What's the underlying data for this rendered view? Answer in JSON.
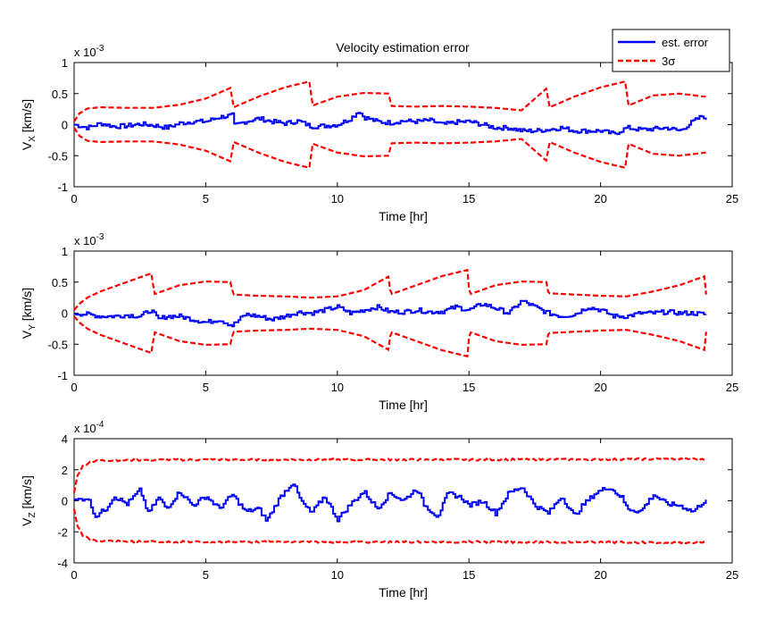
{
  "figure": {
    "title": "Velocity estimation error",
    "legend": {
      "placement": "top-right",
      "entries": [
        {
          "label": "est. error",
          "color": "#0000ff",
          "style": "solid"
        },
        {
          "label": "3σ",
          "color": "#ff0000",
          "style": "dashed"
        }
      ]
    }
  },
  "chart_data": [
    {
      "type": "line",
      "title": "Velocity estimation error",
      "xlabel": "Time [hr]",
      "ylabel_main": "V",
      "ylabel_sub": "X",
      "ylabel_unit": " [km/s]",
      "exponent_base": "x 10",
      "exponent_power": "-3",
      "xlim": [
        0,
        25
      ],
      "ylim": [
        -1,
        1
      ],
      "xticks": [
        "0",
        "5",
        "10",
        "15",
        "20",
        "25"
      ],
      "yticks": [
        "-1",
        "-0.5",
        "0",
        "0.5",
        "1"
      ],
      "grid": false,
      "sigma_envelope": {
        "name": "3σ",
        "color": "#ff0000",
        "resets": [
          6,
          9,
          12,
          18,
          21
        ],
        "x": [
          0,
          0.2,
          0.5,
          1,
          2,
          3,
          4,
          5,
          5.99,
          6.01,
          7,
          8,
          8.99,
          9.01,
          10,
          11,
          11.99,
          12.01,
          13,
          14,
          15,
          16,
          17,
          17.99,
          18.01,
          19,
          20,
          20.99,
          21.01,
          22,
          23,
          24
        ],
        "upper": [
          0.05,
          0.18,
          0.26,
          0.28,
          0.27,
          0.27,
          0.32,
          0.42,
          0.6,
          0.27,
          0.45,
          0.6,
          0.7,
          0.3,
          0.45,
          0.51,
          0.5,
          0.3,
          0.29,
          0.3,
          0.29,
          0.27,
          0.23,
          0.6,
          0.27,
          0.45,
          0.6,
          0.7,
          0.3,
          0.47,
          0.5,
          0.45
        ]
      },
      "series": [
        {
          "name": "est. error",
          "color": "#0000ff",
          "x": [
            0,
            0.5,
            1,
            1.5,
            2,
            2.5,
            3,
            3.5,
            4,
            4.5,
            5,
            5.5,
            6,
            6.05,
            6.5,
            7,
            7.5,
            8,
            8.5,
            9,
            9.5,
            10,
            10.5,
            10.8,
            11,
            11.5,
            12,
            12.5,
            13,
            13.5,
            14,
            14.5,
            15,
            15.5,
            16,
            16.5,
            17,
            17.5,
            18,
            18.5,
            19,
            19.5,
            20,
            20.5,
            21,
            21.5,
            22,
            22.5,
            23,
            23.5,
            23.9,
            24
          ],
          "values": [
            0,
            -0.05,
            0.02,
            -0.03,
            -0.02,
            0.01,
            -0.01,
            -0.05,
            0.02,
            0.05,
            0.05,
            0.12,
            0.15,
            -0.02,
            0.05,
            0.1,
            0.05,
            0.02,
            0.06,
            -0.03,
            -0.02,
            0.0,
            0.1,
            0.22,
            0.12,
            0.05,
            0.03,
            0.06,
            0.05,
            0.07,
            0.0,
            0.04,
            0.05,
            0.0,
            -0.05,
            -0.05,
            -0.1,
            -0.1,
            -0.08,
            -0.05,
            -0.1,
            -0.1,
            -0.1,
            -0.15,
            -0.05,
            -0.08,
            -0.07,
            -0.05,
            -0.1,
            0.05,
            0.15,
            0.05
          ]
        }
      ]
    },
    {
      "type": "line",
      "xlabel": "Time [hr]",
      "ylabel_main": "V",
      "ylabel_sub": "Y",
      "ylabel_unit": " [km/s]",
      "exponent_base": "x 10",
      "exponent_power": "-3",
      "xlim": [
        0,
        25
      ],
      "ylim": [
        -1,
        1
      ],
      "xticks": [
        "0",
        "5",
        "10",
        "15",
        "20",
        "25"
      ],
      "yticks": [
        "-1",
        "-0.5",
        "0",
        "0.5",
        "1"
      ],
      "grid": false,
      "sigma_envelope": {
        "name": "3σ",
        "color": "#ff0000",
        "resets": [
          3,
          6,
          12,
          15,
          18,
          24
        ],
        "x": [
          0,
          0.2,
          0.5,
          1,
          2,
          2.99,
          3.01,
          4,
          5,
          5.99,
          6.01,
          7,
          8,
          9,
          10,
          11,
          11.99,
          12.01,
          13,
          14,
          14.99,
          15.01,
          16,
          17,
          17.99,
          18.01,
          19,
          20,
          21,
          22,
          23,
          23.99,
          24.01
        ],
        "upper": [
          0.05,
          0.15,
          0.25,
          0.35,
          0.5,
          0.65,
          0.3,
          0.45,
          0.51,
          0.5,
          0.3,
          0.28,
          0.27,
          0.25,
          0.27,
          0.37,
          0.6,
          0.3,
          0.45,
          0.6,
          0.7,
          0.3,
          0.45,
          0.51,
          0.5,
          0.32,
          0.3,
          0.28,
          0.27,
          0.35,
          0.45,
          0.6,
          0.3
        ]
      },
      "series": [
        {
          "name": "est. error",
          "color": "#0000ff",
          "x": [
            0,
            0.5,
            1,
            1.5,
            2,
            2.5,
            2.9,
            3.2,
            3.5,
            4,
            4.5,
            5,
            5.5,
            6,
            6.5,
            7,
            7.5,
            8,
            8.5,
            9,
            9.5,
            10,
            10.5,
            11,
            11.5,
            12,
            12.5,
            13,
            13.5,
            14,
            14.5,
            15,
            15.5,
            16,
            16.5,
            17,
            17.5,
            18,
            18.5,
            19,
            19.5,
            20,
            20.5,
            21,
            21.5,
            22,
            22.5,
            23,
            23.5,
            24
          ],
          "values": [
            0,
            -0.02,
            -0.05,
            -0.05,
            -0.03,
            -0.05,
            0.05,
            -0.1,
            -0.05,
            -0.05,
            -0.1,
            -0.15,
            -0.1,
            -0.2,
            -0.02,
            -0.05,
            -0.1,
            -0.05,
            0.02,
            0.0,
            0.05,
            0.1,
            0.0,
            0.05,
            0.1,
            0.02,
            0.02,
            0.05,
            0.02,
            0.03,
            0.1,
            0.05,
            0.15,
            0.08,
            0.0,
            0.2,
            0.1,
            0.0,
            -0.05,
            -0.02,
            0.1,
            0.05,
            -0.05,
            -0.05,
            0.0,
            0.0,
            0.02,
            0.0,
            0.0,
            -0.02
          ]
        }
      ]
    },
    {
      "type": "line",
      "xlabel": "Time [hr]",
      "ylabel_main": "V",
      "ylabel_sub": "Z",
      "ylabel_unit": " [km/s]",
      "exponent_base": "x 10",
      "exponent_power": "-4",
      "xlim": [
        0,
        25
      ],
      "ylim": [
        -4,
        4
      ],
      "xticks": [
        "0",
        "5",
        "10",
        "15",
        "20",
        "25"
      ],
      "yticks": [
        "-4",
        "-2",
        "0",
        "2",
        "4"
      ],
      "grid": false,
      "sigma_envelope": {
        "name": "3σ",
        "color": "#ff0000",
        "resets": [],
        "x": [
          0,
          0.1,
          0.3,
          0.6,
          1,
          2,
          5,
          10,
          15,
          20,
          24
        ],
        "upper": [
          0.5,
          1.5,
          2.2,
          2.5,
          2.6,
          2.62,
          2.65,
          2.65,
          2.65,
          2.67,
          2.7
        ]
      },
      "series": [
        {
          "name": "est. error",
          "color": "#0000ff",
          "x": [
            0,
            0.5,
            0.8,
            1.2,
            1.5,
            2,
            2.5,
            2.8,
            3.2,
            3.5,
            4,
            4.5,
            5,
            5.5,
            6,
            6.5,
            7,
            7.3,
            7.8,
            8.3,
            8.6,
            9,
            9.5,
            10,
            10.5,
            11,
            11.5,
            12,
            12.5,
            13,
            13.3,
            13.8,
            14.2,
            14.7,
            15,
            15.5,
            16,
            16.5,
            17,
            17.5,
            18,
            18.5,
            19,
            19.3,
            19.8,
            20.3,
            20.8,
            21,
            21.5,
            22,
            22.5,
            23,
            23.5,
            24
          ],
          "values": [
            0,
            0.2,
            -1.0,
            -0.5,
            0.3,
            -0.2,
            0.7,
            -0.8,
            0.2,
            -0.5,
            0.6,
            -0.3,
            0.3,
            -0.5,
            0.4,
            -0.7,
            -0.5,
            -1.3,
            0.2,
            1.2,
            0.0,
            -0.8,
            0.3,
            -1.2,
            -0.2,
            0.6,
            -0.5,
            0.5,
            0.0,
            0.8,
            -0.3,
            -1.0,
            0.5,
            0.2,
            -0.3,
            0.0,
            -0.8,
            0.5,
            0.9,
            -0.3,
            -0.8,
            0.3,
            -1.0,
            -0.3,
            0.5,
            0.9,
            0.2,
            -0.5,
            -0.7,
            0.4,
            -0.2,
            -0.3,
            -0.7,
            0.1
          ]
        }
      ]
    }
  ]
}
